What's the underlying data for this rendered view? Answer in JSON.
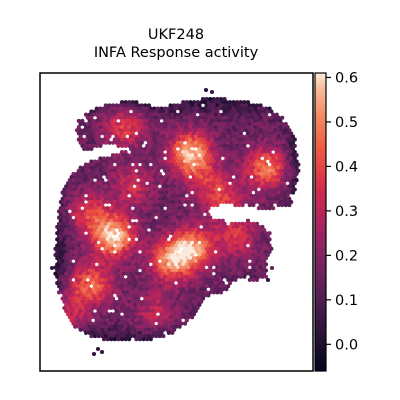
{
  "chart_data": {
    "type": "heatmap",
    "title": "UKF248",
    "subtitle": "INFA Response activity",
    "xlabel": "",
    "ylabel": "",
    "grid": false,
    "axis_ticks": false,
    "colormap": "rocket",
    "colorbar": {
      "range": [
        -0.06,
        0.61
      ],
      "ticks": [
        0.0,
        0.1,
        0.2,
        0.3,
        0.4,
        0.5,
        0.6
      ],
      "tick_labels": [
        "0.0",
        "0.1",
        "0.2",
        "0.3",
        "0.4",
        "0.5",
        "0.6"
      ]
    },
    "spot_value_range": [
      -0.05,
      0.61
    ],
    "hotspots": [
      {
        "x": 0.55,
        "y": 0.73,
        "value": 0.58
      },
      {
        "x": 0.27,
        "y": 0.45,
        "value": 0.6
      },
      {
        "x": 0.56,
        "y": 0.41,
        "value": 0.52
      },
      {
        "x": 0.48,
        "y": 0.37,
        "value": 0.5
      },
      {
        "x": 0.19,
        "y": 0.29,
        "value": 0.45
      },
      {
        "x": 0.83,
        "y": 0.68,
        "value": 0.48
      },
      {
        "x": 0.31,
        "y": 0.82,
        "value": 0.38
      },
      {
        "x": 0.18,
        "y": 0.53,
        "value": 0.37
      },
      {
        "x": 0.34,
        "y": 0.62,
        "value": 0.33
      },
      {
        "x": 0.67,
        "y": 0.58,
        "value": 0.34
      },
      {
        "x": 0.42,
        "y": 0.2,
        "value": 0.3
      },
      {
        "x": 0.1,
        "y": 0.2,
        "value": 0.32
      },
      {
        "x": 0.72,
        "y": 0.45,
        "value": 0.35
      },
      {
        "x": 0.6,
        "y": 0.64,
        "value": 0.28
      }
    ]
  }
}
